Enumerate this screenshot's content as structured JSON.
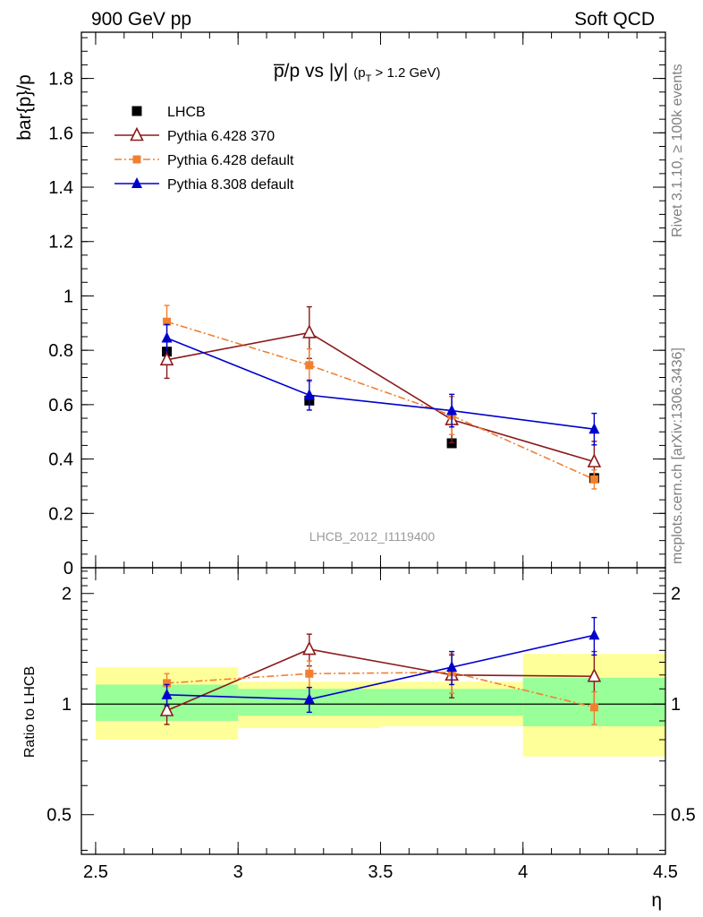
{
  "header": {
    "left": "900 GeV pp",
    "right": "Soft QCD"
  },
  "side_labels": {
    "rivet": "Rivet 3.1.10, ≥ 100k events",
    "mcplots": "mcplots.cern.ch [arXiv:1306.3436]"
  },
  "chart_data": {
    "type": "scatter",
    "title_main": "p̅/p vs |y|",
    "title_cut": "(p",
    "title_cut_sub": "T",
    "title_cut_rest": " > 1.2 GeV)",
    "ylabel": "bar{p}/p",
    "ratio_ylabel": "Ratio to LHCB",
    "xlabel": "η",
    "analysis_id": "LHCB_2012_I1119400",
    "x_range": [
      2.45,
      4.5
    ],
    "y_range": [
      0,
      1.97
    ],
    "ratio_range": [
      0.39,
      2.35
    ],
    "x_ticks": [
      "2.5",
      "3",
      "3.5",
      "4",
      "4.5"
    ],
    "y_ticks": [
      "0",
      "0.2",
      "0.4",
      "0.6",
      "0.8",
      "1",
      "1.2",
      "1.4",
      "1.6",
      "1.8"
    ],
    "ratio_ticks": [
      "0.5",
      "1",
      "2"
    ],
    "bin_edges": [
      2.5,
      3.0,
      3.5,
      4.0,
      4.5
    ],
    "ratio_band_green": [
      [
        0.9,
        1.13
      ],
      [
        0.93,
        1.1
      ],
      [
        0.93,
        1.1
      ],
      [
        0.87,
        1.18
      ]
    ],
    "ratio_band_yellow": [
      [
        0.8,
        1.26
      ],
      [
        0.86,
        1.15
      ],
      [
        0.87,
        1.15
      ],
      [
        0.72,
        1.37
      ]
    ],
    "series": [
      {
        "name": "LHCB",
        "color": "#000000",
        "marker": "square-filled",
        "line": "none",
        "x": [
          2.75,
          3.25,
          3.75,
          4.25
        ],
        "y": [
          0.795,
          0.615,
          0.458,
          0.33
        ],
        "yerr": [
          0.0,
          0.0,
          0.0,
          0.0
        ],
        "ratio": [
          1.0,
          1.0,
          1.0,
          1.0
        ],
        "ratio_err": [
          0.0,
          0.0,
          0.0,
          0.0
        ]
      },
      {
        "name": "Pythia 6.428 370",
        "color": "#8b1a1a",
        "marker": "triangle-open",
        "line": "solid",
        "x": [
          2.75,
          3.25,
          3.75,
          4.25
        ],
        "y": [
          0.765,
          0.865,
          0.545,
          0.39
        ],
        "yerr": [
          0.068,
          0.095,
          0.085,
          0.075
        ],
        "ratio": [
          0.96,
          1.41,
          1.2,
          1.19
        ],
        "ratio_err": [
          0.08,
          0.14,
          0.16,
          0.2
        ]
      },
      {
        "name": "Pythia 6.428 default",
        "color": "#f08030",
        "marker": "square-filled",
        "line": "dashdot",
        "x": [
          2.75,
          3.25,
          3.75,
          4.25
        ],
        "y": [
          0.905,
          0.745,
          0.56,
          0.325
        ],
        "yerr": [
          0.06,
          0.06,
          0.07,
          0.035
        ],
        "ratio": [
          1.14,
          1.21,
          1.22,
          0.98
        ],
        "ratio_err": [
          0.07,
          0.1,
          0.15,
          0.1
        ]
      },
      {
        "name": "Pythia 8.308 default",
        "color": "#0000cc",
        "marker": "triangle-filled",
        "line": "solid",
        "x": [
          2.75,
          3.25,
          3.75,
          4.25
        ],
        "y": [
          0.845,
          0.635,
          0.578,
          0.51
        ],
        "yerr": [
          0.05,
          0.055,
          0.06,
          0.058
        ],
        "ratio": [
          1.06,
          1.03,
          1.26,
          1.54
        ],
        "ratio_err": [
          0.07,
          0.08,
          0.13,
          0.18
        ]
      }
    ]
  }
}
